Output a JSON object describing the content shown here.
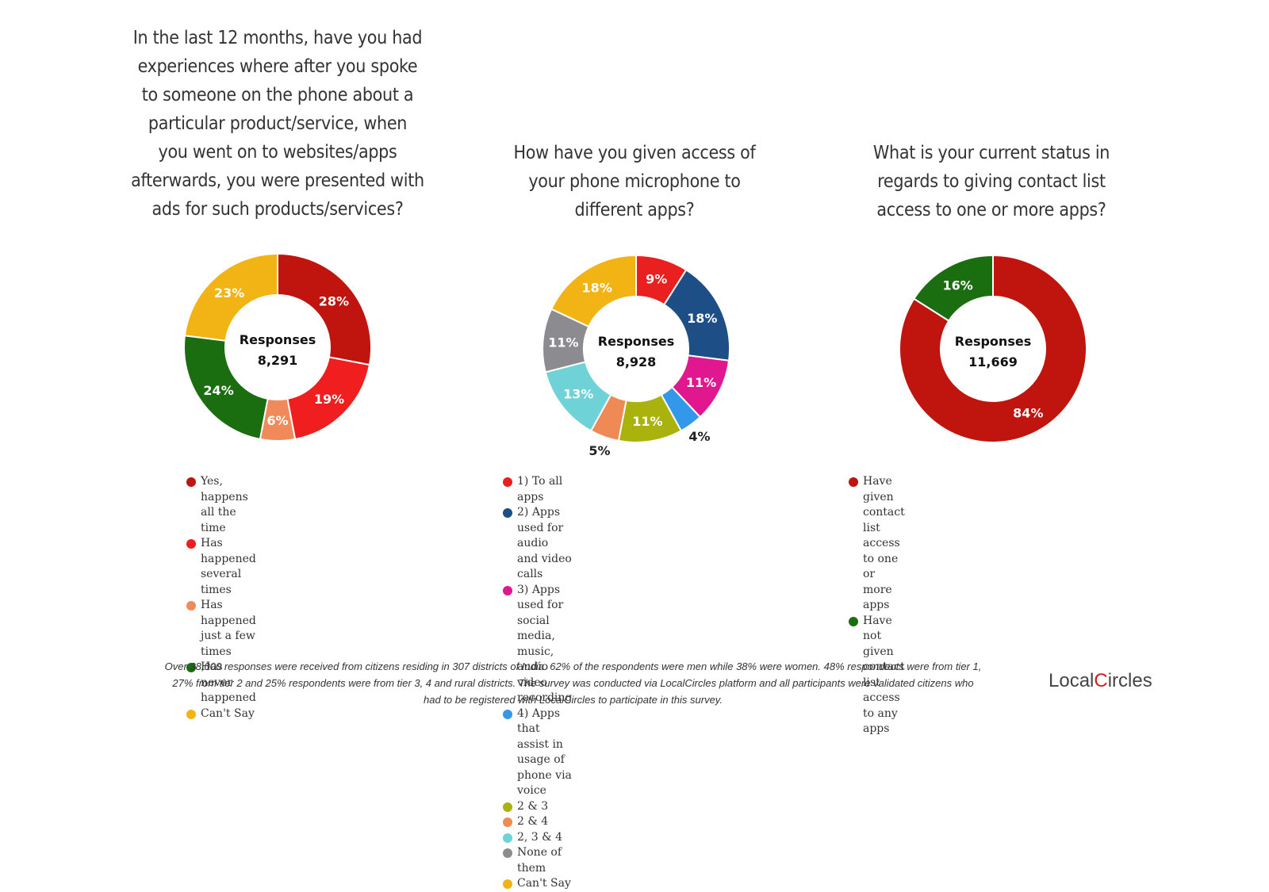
{
  "chart_data": [
    {
      "type": "pie",
      "title": "In the last 12 months, have you had experiences where after you spoke to someone on the phone about a particular product/service, when you went on to websites/apps afterwards, you were presented with ads for such products/services?",
      "title_lines": [
        "In the last 12 months, have you had",
        "experiences where after you spoke",
        "to someone on the phone about a",
        "particular product/service, when",
        "you went on to websites/apps",
        "afterwards, you were presented with",
        "ads for such products/services?"
      ],
      "center_label": "Responses",
      "center_value": "8,291",
      "legend_position": "bottom",
      "slices": [
        {
          "name": "Yes, happens all the time",
          "value": 28,
          "label": "28%",
          "color": "#c0140f"
        },
        {
          "name": "Has happened several times",
          "value": 19,
          "label": "19%",
          "color": "#f01e1e"
        },
        {
          "name": "Has happened just a few times",
          "value": 6,
          "label": "6%",
          "color": "#f08a5a"
        },
        {
          "name": "Has never happened",
          "value": 24,
          "label": "24%",
          "color": "#1a6e10"
        },
        {
          "name": "Can't Say",
          "value": 23,
          "label": "23%",
          "color": "#f2b415"
        }
      ]
    },
    {
      "type": "pie",
      "title": "How have you given access of your phone microphone to different apps?",
      "title_lines": [
        "How have you given access of",
        "your phone microphone to",
        "different apps?"
      ],
      "center_label": "Responses",
      "center_value": "8,928",
      "legend_position": "bottom",
      "slices": [
        {
          "name": "1) To all apps",
          "value": 9,
          "label": "9%",
          "color": "#ea2020"
        },
        {
          "name": "2) Apps used for audio and video calls",
          "value": 18,
          "label": "18%",
          "color": "#1d4f86"
        },
        {
          "name": "3) Apps used for social media, music,\naudio video recording",
          "value": 11,
          "label": "11%",
          "color": "#e0178f"
        },
        {
          "name": "4) Apps that assist in usage of phone via voice",
          "value": 4,
          "label": "4%",
          "color": "#3498ea"
        },
        {
          "name": "2 & 3",
          "value": 11,
          "label": "11%",
          "color": "#aab20d"
        },
        {
          "name": "2 & 4",
          "value": 5,
          "label": "5%",
          "color": "#f08a55"
        },
        {
          "name": "2, 3 & 4",
          "value": 13,
          "label": "13%",
          "color": "#6fd2d6"
        },
        {
          "name": "None of them",
          "value": 11,
          "label": "11%",
          "color": "#8c8c90"
        },
        {
          "name": "Can't Say",
          "value": 18,
          "label": "18%",
          "color": "#f2b415"
        }
      ]
    },
    {
      "type": "pie",
      "title": "What is your current status in regards to giving contact list access to one or more apps?",
      "title_lines": [
        "What is your current status in",
        "regards to giving contact list",
        "access to one or more apps?"
      ],
      "center_label": "Responses",
      "center_value": "11,669",
      "legend_position": "bottom",
      "slices": [
        {
          "name": "Have given contact list access to one or more apps",
          "value": 84,
          "label": "84%",
          "color": "#c0140f"
        },
        {
          "name": "Have not given contact list access to any apps",
          "value": 16,
          "label": "16%",
          "color": "#1a6e10"
        }
      ]
    }
  ],
  "footer": {
    "lines": [
      "Over 38,000 responses were received from citizens residing in 307 districts of India. 62% of the respondents were men while 38% were women. 48% respondents were from tier 1,",
      "27% from tier 2 and 25% respondents were from tier 3, 4 and rural districts. The survey was conducted via LocalCircles platform and all participants were validated citizens who",
      "had to be registered with LocalCircles to participate in this survey."
    ]
  },
  "logo": {
    "text_before": "Local",
    "text_c": "C",
    "text_after": "ircles",
    "accent_color": "#cc1f1f"
  }
}
